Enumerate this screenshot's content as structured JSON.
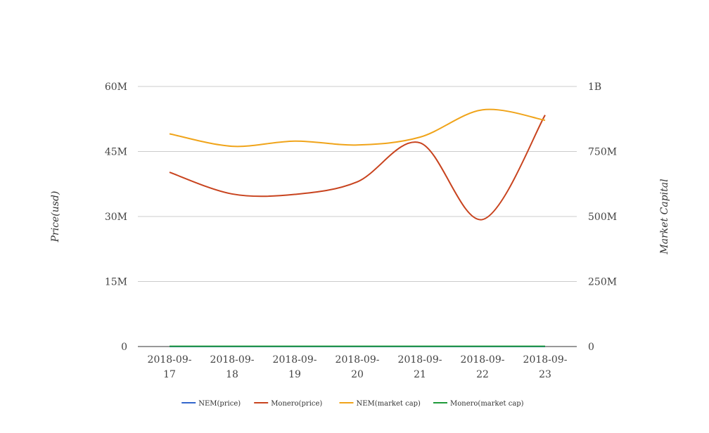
{
  "chart_data": {
    "type": "line",
    "categories": [
      [
        "2018-09-",
        "17"
      ],
      [
        "2018-09-",
        "18"
      ],
      [
        "2018-09-",
        "19"
      ],
      [
        "2018-09-",
        "20"
      ],
      [
        "2018-09-",
        "21"
      ],
      [
        "2018-09-",
        "22"
      ],
      [
        "2018-09-",
        "23"
      ]
    ],
    "ylabel_left": "Price(usd)",
    "ylabel_right": "Market Capital",
    "y_left_ticks": [
      "0",
      "15M",
      "30M",
      "45M",
      "60M"
    ],
    "y_right_ticks": [
      "0",
      "250M",
      "500M",
      "750M",
      "1B"
    ],
    "ylim_left": [
      0,
      60000000
    ],
    "ylim_right": [
      0,
      1000000000
    ],
    "grid": true,
    "legend_position": "bottom",
    "series": [
      {
        "name": "NEM(price)",
        "axis": "left",
        "color": "#3366cc",
        "values": [
          0.1,
          0.1,
          0.1,
          0.1,
          0.1,
          0.1,
          0.1
        ]
      },
      {
        "name": "Monero(price)",
        "axis": "left",
        "color": "#c8431e",
        "values": [
          40200000,
          35200000,
          35100000,
          38000000,
          47000000,
          29300000,
          53400000
        ]
      },
      {
        "name": "NEM(market cap)",
        "axis": "right",
        "color": "#f0a41a",
        "values": [
          818000000,
          770000000,
          790000000,
          775000000,
          805000000,
          910000000,
          870000000
        ]
      },
      {
        "name": "Monero(market cap)",
        "axis": "right",
        "color": "#1e9a3a",
        "values": [
          1000000,
          1000000,
          1000000,
          1000000,
          1000000,
          1000000,
          1000000
        ]
      }
    ]
  }
}
